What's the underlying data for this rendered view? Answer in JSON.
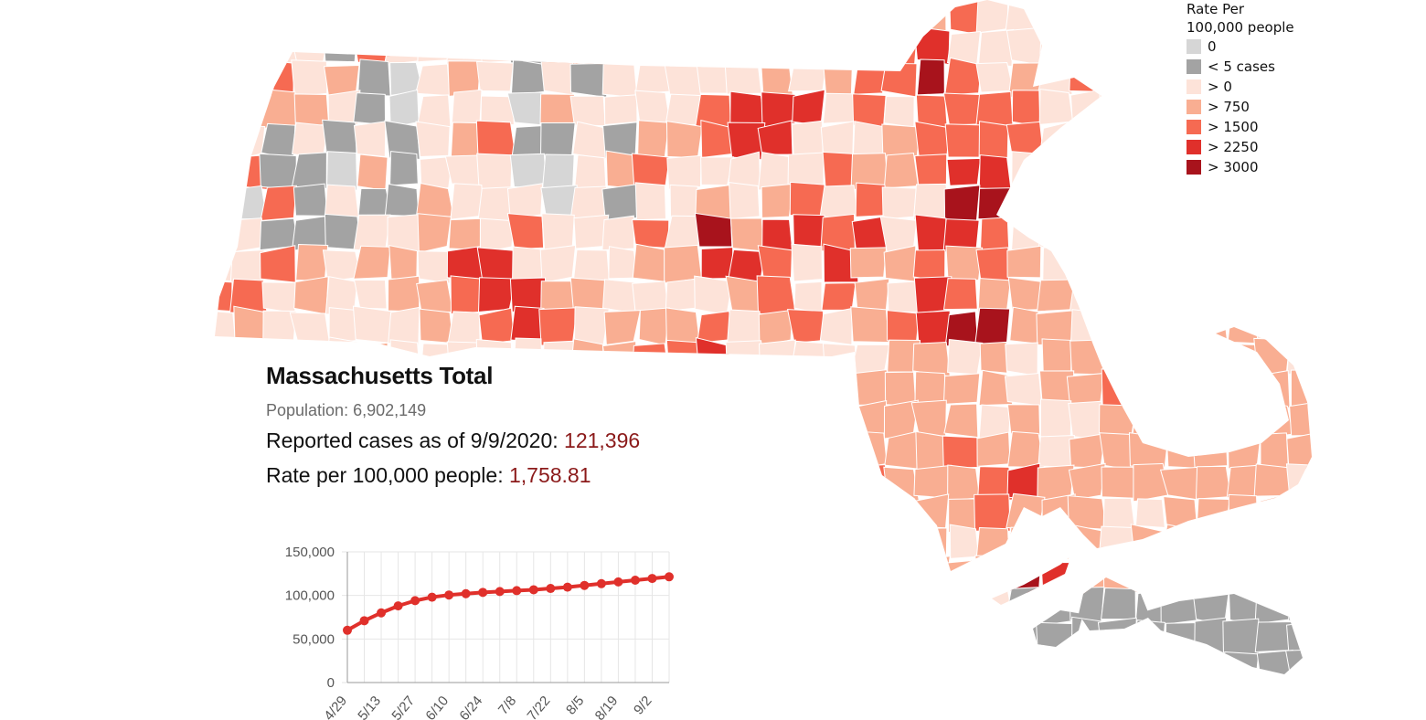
{
  "legend": {
    "title_line1": "Rate Per",
    "title_line2": "100,000 people",
    "items": [
      {
        "label": "0",
        "color": "#d6d6d6"
      },
      {
        "label": "< 5 cases",
        "color": "#a3a3a3"
      },
      {
        "label": "> 0",
        "color": "#fde3d9"
      },
      {
        "label": "> 750",
        "color": "#f9ae92"
      },
      {
        "label": "> 1500",
        "color": "#f66a52"
      },
      {
        "label": "> 2250",
        "color": "#e0302b"
      },
      {
        "label": "> 3000",
        "color": "#a8131c"
      }
    ]
  },
  "summary": {
    "title": "Massachusetts Total",
    "population_label": "Population: 6,902,149",
    "cases_prefix": "Reported cases as of 9/9/2020: ",
    "cases_value": "121,396",
    "rate_prefix": "Rate per 100,000 people: ",
    "rate_value": "1,758.81"
  },
  "chart_data": {
    "type": "line",
    "x": [
      "4/29",
      "5/6",
      "5/13",
      "5/20",
      "5/27",
      "6/3",
      "6/10",
      "6/17",
      "6/24",
      "7/1",
      "7/8",
      "7/15",
      "7/22",
      "7/29",
      "8/5",
      "8/12",
      "8/19",
      "8/26",
      "9/2",
      "9/9"
    ],
    "x_tick_labels": [
      "4/29",
      "5/13",
      "5/27",
      "6/10",
      "6/24",
      "7/8",
      "7/22",
      "8/5",
      "8/19",
      "9/2"
    ],
    "values": [
      60000,
      71000,
      80000,
      88000,
      94000,
      98000,
      100500,
      102000,
      103500,
      104500,
      105500,
      106500,
      108000,
      109500,
      111500,
      113500,
      115500,
      117500,
      119500,
      121396
    ],
    "y_tick_labels": [
      "150,000",
      "100,000",
      "50,000",
      "0"
    ],
    "ylim": [
      0,
      150000
    ],
    "grid": true,
    "color": "#e0302b"
  },
  "map": {
    "colors": [
      "#d6d6d6",
      "#a3a3a3",
      "#fde3d9",
      "#f9ae92",
      "#f66a52",
      "#e0302b",
      "#a8131c"
    ]
  }
}
